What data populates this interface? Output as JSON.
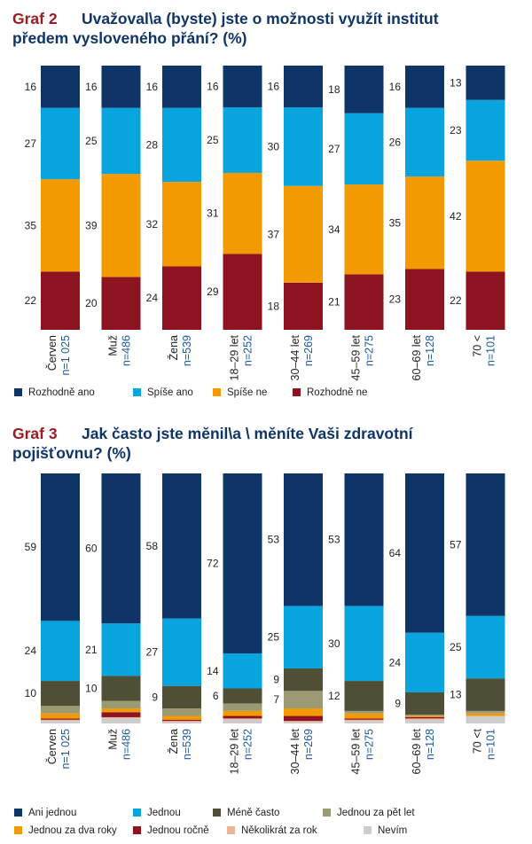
{
  "graf2": {
    "tag": "Graf 2",
    "title_line1": "Uvažoval\\a (byste) jste o možnosti využít institut",
    "title_line2": "předem vysloveného přání? (%)"
  },
  "graf3": {
    "tag": "Graf 3",
    "title_line1": "Jak často jste měnil\\a \\ měníte Vaši zdravotní",
    "title_line2": "pojišťovnu? (%)"
  },
  "colors": {
    "title_tag": "#9b1a1f",
    "title_text": "#0f3467",
    "n_label": "#1c5aa0"
  },
  "chart_data": [
    {
      "type": "bar",
      "stacked": true,
      "unit": "%",
      "categories": [
        "Červen",
        "Muž",
        "Žena",
        "18–29 let",
        "30–44 let",
        "45–59 let",
        "60–69 let",
        "70 <"
      ],
      "n_labels": [
        "n=1 025",
        "n=486",
        "n=539",
        "n=252",
        "n=269",
        "n=275",
        "n=128",
        "n=101"
      ],
      "legend_position": "bottom",
      "series": [
        {
          "name": "Rozhodně ano",
          "color": "#0f3467",
          "values": [
            16,
            16,
            16,
            16,
            16,
            18,
            16,
            13
          ]
        },
        {
          "name": "Spíše ano",
          "color": "#08a4de",
          "values": [
            27,
            25,
            28,
            25,
            30,
            27,
            26,
            23
          ]
        },
        {
          "name": "Spíše ne",
          "color": "#f39a00",
          "values": [
            35,
            39,
            32,
            31,
            37,
            34,
            35,
            42
          ]
        },
        {
          "name": "Rozhodně ne",
          "color": "#8d1320",
          "values": [
            22,
            20,
            24,
            29,
            18,
            21,
            23,
            22
          ]
        }
      ]
    },
    {
      "type": "bar",
      "stacked": true,
      "unit": "%",
      "categories": [
        "Červen",
        "Muž",
        "Žena",
        "18–29 let",
        "30–44 let",
        "45–59 let",
        "60–69 let",
        "70 <t"
      ],
      "n_labels": [
        "n=1 025",
        "n=486",
        "n=539",
        "n=252",
        "n=269",
        "n=275",
        "n=128",
        "n=101"
      ],
      "legend_position": "bottom",
      "series": [
        {
          "name": "Ani jednou",
          "color": "#0f3467",
          "values": [
            59,
            60,
            58,
            72,
            53,
            53,
            64,
            57
          ],
          "labels": [
            "59",
            "60",
            "58",
            "72",
            "53",
            "53",
            "64",
            "57"
          ]
        },
        {
          "name": "Jednou",
          "color": "#08a4de",
          "values": [
            24,
            21,
            27,
            14,
            25,
            30,
            24,
            25
          ],
          "labels": [
            "24",
            "21",
            "27",
            "14",
            "25",
            "30",
            "24",
            "25"
          ]
        },
        {
          "name": "Méně často",
          "color": "#4f4f36",
          "values": [
            10,
            10,
            9,
            6,
            9,
            12,
            9,
            13
          ],
          "labels": [
            "10",
            "10",
            "9",
            "6",
            "9",
            "12",
            "9",
            "13"
          ]
        },
        {
          "name": "Jednou za pět let",
          "color": "#9c9a72",
          "values": [
            3,
            3,
            3,
            3,
            7,
            1,
            0.5,
            1
          ],
          "labels": [
            "",
            "",
            "",
            "",
            "7",
            "",
            "",
            ""
          ]
        },
        {
          "name": "Jednou za dva roky",
          "color": "#f39a00",
          "values": [
            2,
            1.5,
            1.5,
            2,
            3,
            2,
            0.5,
            1
          ],
          "labels": [
            "",
            "",
            "",
            "",
            "",
            "",
            "",
            ""
          ]
        },
        {
          "name": "Jednou ročně",
          "color": "#8d1320",
          "values": [
            0.5,
            2,
            0.5,
            1,
            2,
            0.5,
            0.5,
            0
          ],
          "labels": [
            "",
            "",
            "",
            "",
            "",
            "",
            "",
            ""
          ]
        },
        {
          "name": "Několikrát za rok",
          "color": "#e8b49a",
          "values": [
            0.5,
            0.5,
            0.5,
            0.5,
            0.5,
            0.5,
            0.5,
            0
          ],
          "labels": [
            "",
            "",
            "",
            "",
            "",
            "",
            "",
            ""
          ]
        },
        {
          "name": "Nevím",
          "color": "#cccccc",
          "values": [
            1,
            2,
            0.5,
            1.5,
            0.5,
            1,
            1.5,
            3
          ],
          "labels": [
            "",
            "",
            "",
            "",
            "",
            "",
            "",
            ""
          ]
        }
      ]
    }
  ]
}
